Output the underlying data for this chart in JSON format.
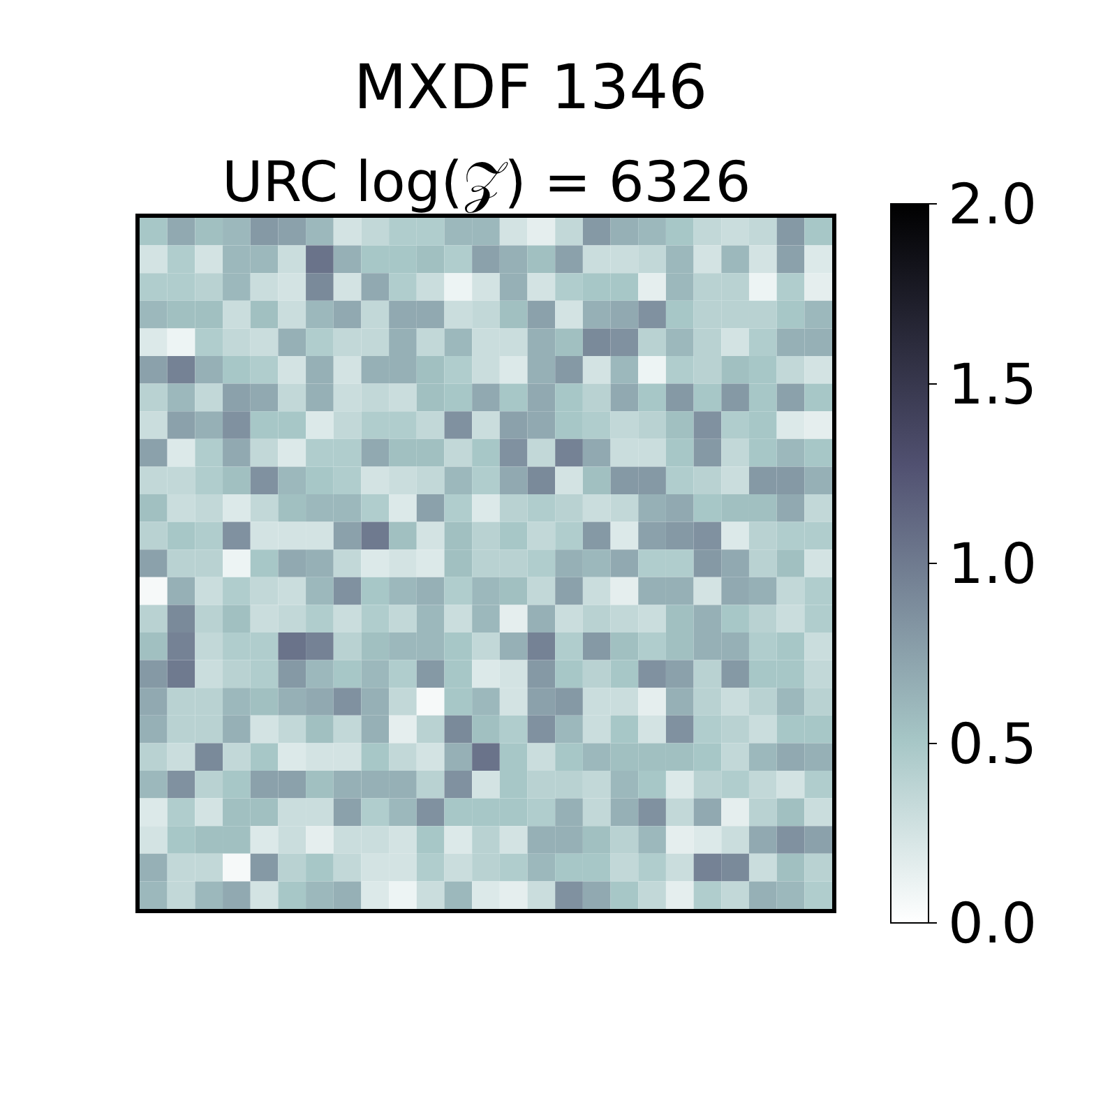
{
  "chart_data": {
    "type": "heatmap",
    "title": "MXDF 1346",
    "subtitle": "URC log(𝒵) = 6326",
    "categories": [
      null,
      null,
      null,
      null,
      null,
      null,
      null,
      null,
      null,
      null,
      null,
      null,
      null,
      null,
      null,
      null,
      null,
      null,
      null,
      null,
      null,
      null,
      null,
      null,
      null
    ],
    "y_categories": [
      null,
      null,
      null,
      null,
      null,
      null,
      null,
      null,
      null,
      null,
      null,
      null,
      null,
      null,
      null,
      null,
      null,
      null,
      null,
      null,
      null,
      null,
      null,
      null,
      null
    ],
    "cells": [
      [
        0.5,
        0.7,
        0.55,
        0.6,
        0.8,
        0.75,
        0.6,
        0.25,
        0.35,
        0.45,
        0.45,
        0.6,
        0.6,
        0.25,
        0.15,
        0.35,
        0.8,
        0.65,
        0.6,
        0.5,
        0.35,
        0.3,
        0.35,
        0.8,
        0.5
      ],
      [
        0.25,
        0.45,
        0.25,
        0.6,
        0.6,
        0.3,
        1.05,
        0.65,
        0.5,
        0.5,
        0.55,
        0.45,
        0.75,
        0.65,
        0.55,
        0.75,
        0.3,
        0.3,
        0.35,
        0.6,
        0.25,
        0.6,
        0.25,
        0.75,
        0.2
      ],
      [
        0.45,
        0.45,
        0.4,
        0.6,
        0.3,
        0.25,
        0.9,
        0.25,
        0.7,
        0.45,
        0.3,
        0.1,
        0.25,
        0.65,
        0.25,
        0.45,
        0.5,
        0.5,
        0.15,
        0.6,
        0.4,
        0.4,
        0.1,
        0.45,
        0.15
      ],
      [
        0.6,
        0.55,
        0.55,
        0.3,
        0.55,
        0.3,
        0.6,
        0.7,
        0.35,
        0.7,
        0.7,
        0.3,
        0.35,
        0.55,
        0.75,
        0.25,
        0.65,
        0.7,
        0.85,
        0.5,
        0.4,
        0.4,
        0.4,
        0.5,
        0.6
      ],
      [
        0.2,
        0.1,
        0.45,
        0.35,
        0.3,
        0.65,
        0.45,
        0.35,
        0.35,
        0.65,
        0.35,
        0.6,
        0.3,
        0.3,
        0.65,
        0.55,
        0.9,
        0.85,
        0.4,
        0.6,
        0.4,
        0.25,
        0.45,
        0.65,
        0.65
      ],
      [
        0.75,
        0.95,
        0.65,
        0.5,
        0.45,
        0.25,
        0.65,
        0.25,
        0.65,
        0.65,
        0.55,
        0.45,
        0.3,
        0.2,
        0.65,
        0.8,
        0.25,
        0.6,
        0.1,
        0.45,
        0.4,
        0.55,
        0.5,
        0.35,
        0.25
      ],
      [
        0.4,
        0.6,
        0.35,
        0.75,
        0.7,
        0.35,
        0.65,
        0.3,
        0.35,
        0.3,
        0.55,
        0.5,
        0.7,
        0.5,
        0.7,
        0.5,
        0.4,
        0.7,
        0.5,
        0.8,
        0.5,
        0.8,
        0.5,
        0.75,
        0.5
      ],
      [
        0.3,
        0.75,
        0.65,
        0.85,
        0.5,
        0.5,
        0.2,
        0.35,
        0.45,
        0.45,
        0.35,
        0.85,
        0.3,
        0.75,
        0.7,
        0.5,
        0.45,
        0.35,
        0.4,
        0.55,
        0.85,
        0.45,
        0.5,
        0.2,
        0.15
      ],
      [
        0.75,
        0.2,
        0.45,
        0.7,
        0.35,
        0.2,
        0.45,
        0.45,
        0.7,
        0.55,
        0.55,
        0.35,
        0.5,
        0.85,
        0.35,
        0.95,
        0.7,
        0.3,
        0.3,
        0.5,
        0.8,
        0.35,
        0.5,
        0.6,
        0.5
      ],
      [
        0.35,
        0.35,
        0.45,
        0.55,
        0.85,
        0.6,
        0.5,
        0.45,
        0.25,
        0.3,
        0.35,
        0.6,
        0.45,
        0.7,
        0.9,
        0.25,
        0.55,
        0.8,
        0.8,
        0.45,
        0.4,
        0.3,
        0.8,
        0.8,
        0.65
      ],
      [
        0.55,
        0.3,
        0.35,
        0.2,
        0.35,
        0.55,
        0.6,
        0.6,
        0.45,
        0.2,
        0.75,
        0.45,
        0.2,
        0.4,
        0.45,
        0.4,
        0.3,
        0.35,
        0.65,
        0.7,
        0.5,
        0.55,
        0.55,
        0.7,
        0.35
      ],
      [
        0.4,
        0.5,
        0.45,
        0.85,
        0.25,
        0.25,
        0.25,
        0.75,
        1.0,
        0.55,
        0.25,
        0.55,
        0.4,
        0.5,
        0.35,
        0.45,
        0.8,
        0.2,
        0.75,
        0.8,
        0.85,
        0.2,
        0.4,
        0.45,
        0.45
      ],
      [
        0.75,
        0.4,
        0.4,
        0.1,
        0.5,
        0.7,
        0.65,
        0.35,
        0.2,
        0.25,
        0.2,
        0.55,
        0.4,
        0.4,
        0.45,
        0.65,
        0.6,
        0.7,
        0.45,
        0.45,
        0.8,
        0.7,
        0.4,
        0.55,
        0.25
      ],
      [
        0.05,
        0.65,
        0.3,
        0.45,
        0.35,
        0.3,
        0.6,
        0.85,
        0.5,
        0.6,
        0.65,
        0.45,
        0.6,
        0.55,
        0.35,
        0.75,
        0.3,
        0.15,
        0.65,
        0.65,
        0.25,
        0.7,
        0.65,
        0.35,
        0.45
      ],
      [
        0.4,
        0.9,
        0.4,
        0.55,
        0.3,
        0.35,
        0.45,
        0.3,
        0.45,
        0.35,
        0.6,
        0.3,
        0.6,
        0.15,
        0.65,
        0.3,
        0.4,
        0.35,
        0.3,
        0.55,
        0.65,
        0.5,
        0.4,
        0.3,
        0.45
      ],
      [
        0.55,
        0.95,
        0.35,
        0.45,
        0.45,
        1.05,
        0.95,
        0.4,
        0.55,
        0.6,
        0.6,
        0.5,
        0.35,
        0.65,
        0.95,
        0.45,
        0.8,
        0.55,
        0.45,
        0.55,
        0.65,
        0.65,
        0.45,
        0.5,
        0.3
      ],
      [
        0.8,
        1.0,
        0.3,
        0.4,
        0.45,
        0.8,
        0.6,
        0.5,
        0.6,
        0.45,
        0.8,
        0.5,
        0.2,
        0.25,
        0.8,
        0.5,
        0.4,
        0.5,
        0.85,
        0.75,
        0.4,
        0.8,
        0.5,
        0.5,
        0.35
      ],
      [
        0.7,
        0.4,
        0.4,
        0.6,
        0.55,
        0.65,
        0.7,
        0.85,
        0.65,
        0.35,
        0.05,
        0.5,
        0.6,
        0.25,
        0.75,
        0.8,
        0.3,
        0.3,
        0.15,
        0.65,
        0.4,
        0.3,
        0.4,
        0.6,
        0.4
      ],
      [
        0.65,
        0.4,
        0.4,
        0.65,
        0.25,
        0.35,
        0.55,
        0.35,
        0.65,
        0.15,
        0.4,
        0.9,
        0.55,
        0.45,
        0.85,
        0.6,
        0.3,
        0.5,
        0.25,
        0.85,
        0.45,
        0.4,
        0.3,
        0.5,
        0.5
      ],
      [
        0.4,
        0.3,
        0.9,
        0.35,
        0.5,
        0.2,
        0.25,
        0.25,
        0.5,
        0.35,
        0.25,
        0.65,
        1.05,
        0.5,
        0.3,
        0.5,
        0.6,
        0.55,
        0.55,
        0.55,
        0.5,
        0.35,
        0.6,
        0.7,
        0.65
      ],
      [
        0.6,
        0.85,
        0.4,
        0.5,
        0.75,
        0.75,
        0.55,
        0.65,
        0.65,
        0.65,
        0.4,
        0.85,
        0.25,
        0.5,
        0.4,
        0.4,
        0.35,
        0.6,
        0.5,
        0.2,
        0.4,
        0.45,
        0.35,
        0.25,
        0.45
      ],
      [
        0.2,
        0.45,
        0.25,
        0.55,
        0.55,
        0.3,
        0.3,
        0.75,
        0.45,
        0.6,
        0.85,
        0.5,
        0.5,
        0.5,
        0.45,
        0.65,
        0.35,
        0.65,
        0.85,
        0.35,
        0.7,
        0.15,
        0.4,
        0.55,
        0.3
      ],
      [
        0.25,
        0.5,
        0.55,
        0.55,
        0.2,
        0.3,
        0.15,
        0.3,
        0.3,
        0.25,
        0.5,
        0.2,
        0.4,
        0.25,
        0.65,
        0.65,
        0.55,
        0.4,
        0.6,
        0.15,
        0.2,
        0.3,
        0.7,
        0.85,
        0.75
      ],
      [
        0.65,
        0.35,
        0.35,
        0.05,
        0.8,
        0.4,
        0.5,
        0.35,
        0.25,
        0.25,
        0.45,
        0.3,
        0.4,
        0.45,
        0.6,
        0.5,
        0.5,
        0.35,
        0.45,
        0.3,
        0.95,
        0.9,
        0.3,
        0.55,
        0.4
      ],
      [
        0.6,
        0.35,
        0.6,
        0.7,
        0.25,
        0.5,
        0.6,
        0.65,
        0.2,
        0.1,
        0.3,
        0.6,
        0.2,
        0.15,
        0.3,
        0.85,
        0.7,
        0.5,
        0.35,
        0.15,
        0.45,
        0.35,
        0.65,
        0.6,
        0.45
      ]
    ],
    "clim": [
      0,
      2
    ],
    "cticks": [
      {
        "value": 0,
        "label": "0.0"
      },
      {
        "value": 0.5,
        "label": "0.5"
      },
      {
        "value": 1,
        "label": "1.0"
      },
      {
        "value": 1.5,
        "label": "1.5"
      },
      {
        "value": 2,
        "label": "2.0"
      }
    ]
  }
}
